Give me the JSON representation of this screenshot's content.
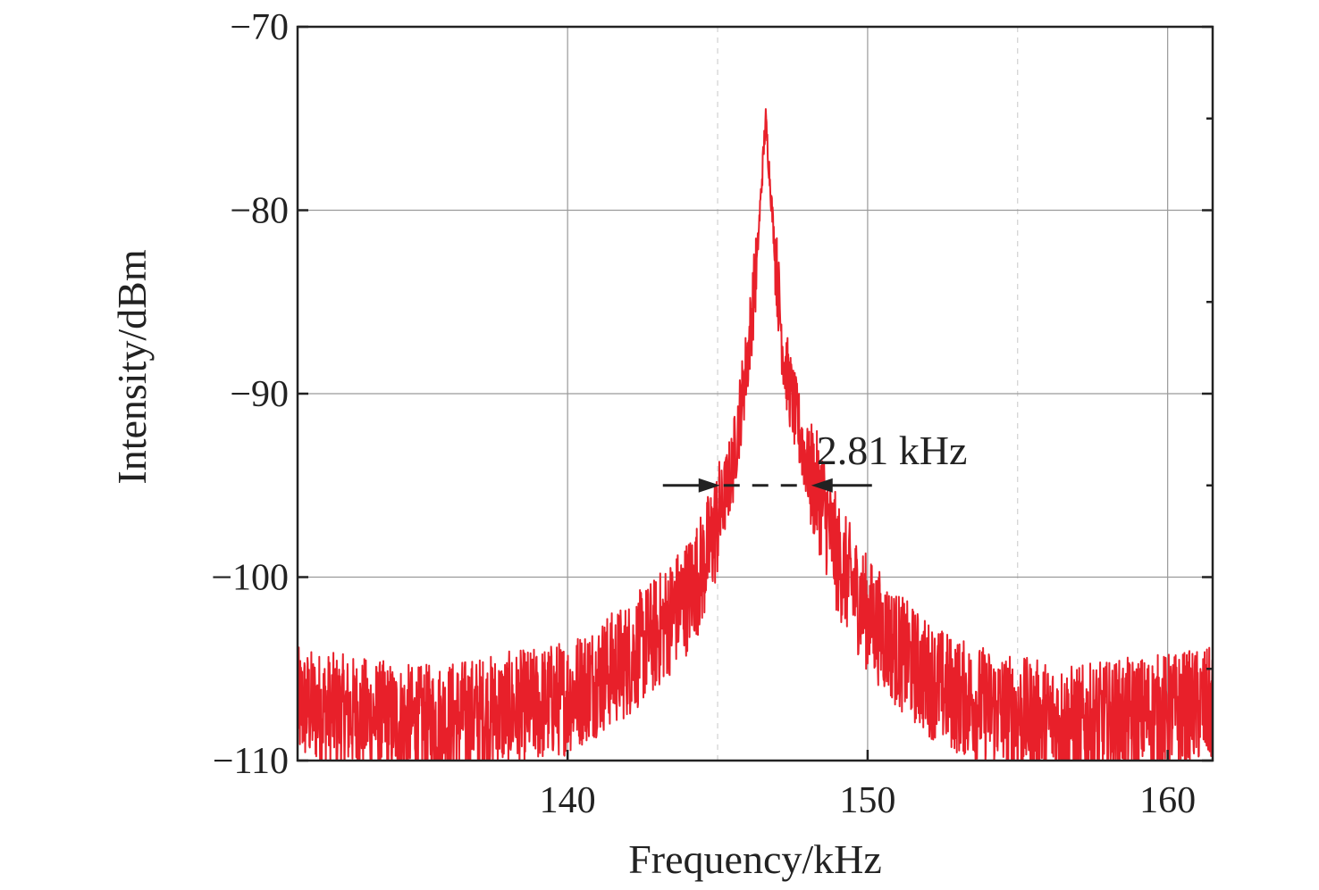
{
  "chart_data": {
    "type": "line",
    "title": "",
    "xlabel": "Frequency/kHz",
    "ylabel": "Intensity/dBm",
    "xlim": [
      131,
      161.5
    ],
    "ylim": [
      -110,
      -70
    ],
    "xticks": [
      140,
      150,
      160
    ],
    "yticks": [
      -70,
      -80,
      -90,
      -100,
      -110
    ],
    "xtick_labels": [
      "140",
      "150",
      "160"
    ],
    "ytick_labels": [
      "−70",
      "−80",
      "−90",
      "−100",
      "−110"
    ],
    "grid": true,
    "series": [
      {
        "color": "#e8202a",
        "center_khz": 146.6,
        "peak_dbm": -75,
        "noise_floor_dbm": -107.5,
        "x": [
          131,
          133,
          135,
          137,
          139,
          140,
          141,
          142,
          143,
          144,
          144.5,
          145,
          145.5,
          146,
          146.3,
          146.6,
          146.9,
          147.2,
          147.5,
          148,
          148.5,
          149,
          150,
          151,
          152,
          153,
          155,
          157,
          159,
          161.5
        ],
        "y": [
          -107,
          -107.5,
          -108,
          -107.5,
          -107,
          -106.5,
          -105.5,
          -104.5,
          -103,
          -101,
          -99.5,
          -97,
          -94,
          -88,
          -83,
          -75,
          -82,
          -88,
          -90.5,
          -94,
          -96,
          -99,
          -102,
          -104,
          -105.5,
          -106.5,
          -107.5,
          -108,
          -107.5,
          -107
        ]
      }
    ],
    "annotation": {
      "label": "2.81 kHz",
      "left_khz": 145.2,
      "right_khz": 148.0,
      "level_dbm": -95
    }
  }
}
